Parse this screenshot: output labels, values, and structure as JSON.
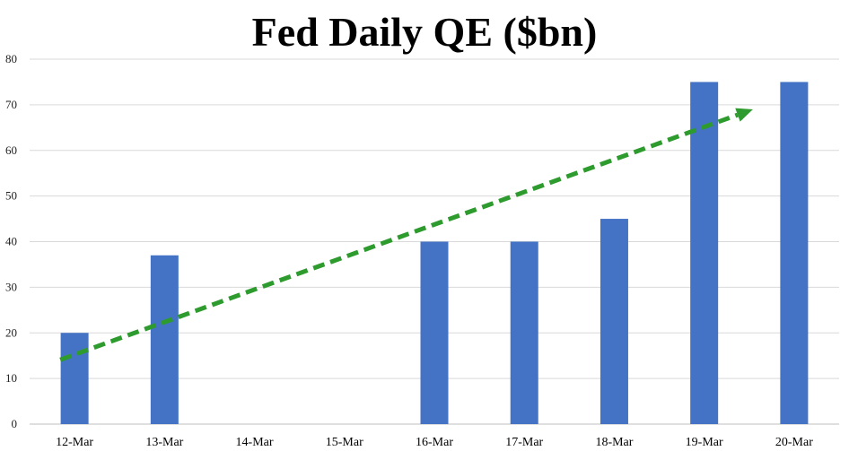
{
  "chart_data": {
    "type": "bar",
    "title": "Fed Daily QE ($bn)",
    "xlabel": "",
    "ylabel": "",
    "categories": [
      "12-Mar",
      "13-Mar",
      "14-Mar",
      "15-Mar",
      "16-Mar",
      "17-Mar",
      "18-Mar",
      "19-Mar",
      "20-Mar"
    ],
    "values": [
      20,
      37,
      0,
      0,
      40,
      40,
      45,
      75,
      75
    ],
    "ylim": [
      0,
      80
    ],
    "yticks": [
      0,
      10,
      20,
      30,
      40,
      50,
      60,
      70,
      80
    ],
    "grid": true,
    "legend": "none",
    "bar_color": "#4472C4",
    "trend_arrow": {
      "style": "dashed",
      "color": "#2E9B2E",
      "start": {
        "category": "12-Mar",
        "value": 14.5
      },
      "end": {
        "category": "20-Mar",
        "value": 69
      }
    }
  }
}
